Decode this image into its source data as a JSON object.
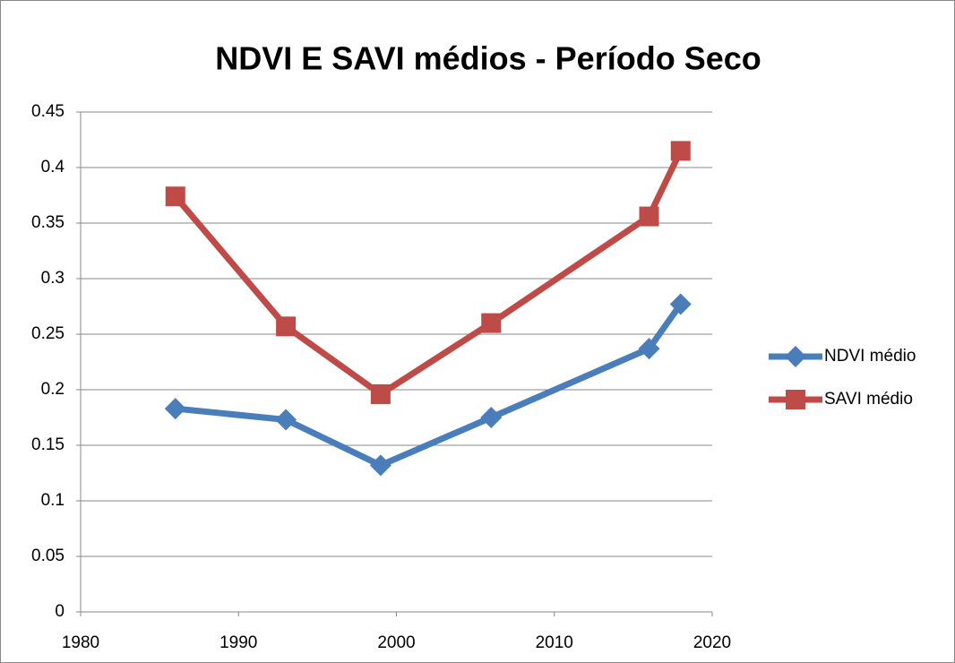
{
  "chart_data": {
    "type": "line",
    "title": "NDVI E SAVI médios - Período Seco",
    "x": [
      1986,
      1993,
      1999,
      2006,
      2016,
      2018
    ],
    "series": [
      {
        "name": "NDVI médio",
        "color": "#4a7ebb",
        "marker": "diamond",
        "values": [
          0.183,
          0.173,
          0.132,
          0.175,
          0.237,
          0.277
        ]
      },
      {
        "name": "SAVI médio",
        "color": "#be4b48",
        "marker": "square",
        "values": [
          0.374,
          0.257,
          0.196,
          0.26,
          0.356,
          0.415
        ]
      }
    ],
    "xlim": [
      1980,
      2020
    ],
    "xticks": [
      1980,
      1990,
      2000,
      2010,
      2020
    ],
    "ylim": [
      0,
      0.45
    ],
    "yticks": [
      0,
      0.05,
      0.1,
      0.15,
      0.2,
      0.25,
      0.3,
      0.35,
      0.4,
      0.45
    ],
    "grid": true,
    "legend": "right"
  }
}
